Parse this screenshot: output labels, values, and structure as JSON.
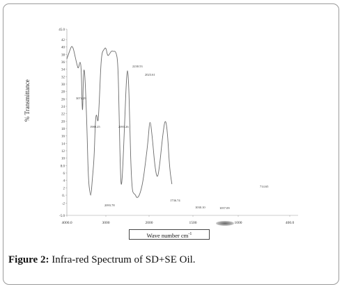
{
  "chart_data": {
    "type": "line",
    "ylabel": "% Transmittance",
    "xlabel": "Wave number cm",
    "xlabel_sup": "-1",
    "x_reversed": true,
    "y_ticks": [
      "45.0",
      "42",
      "40",
      "38",
      "36",
      "34",
      "32",
      "30",
      "28",
      "26",
      "24",
      "22",
      "20",
      "18",
      "16",
      "14",
      "12",
      "10",
      "8.0",
      "6",
      "4",
      "2",
      "0.",
      "-2",
      "-5.0"
    ],
    "x_tick_labels": [
      "4000.0",
      "3000",
      "2000",
      "1500",
      "1000",
      "400.0"
    ],
    "series": [
      {
        "points": [
          [
            4000,
            36.8
          ],
          [
            3900,
            39.8
          ],
          [
            3870,
            40.3
          ],
          [
            3830,
            39.5
          ],
          [
            3790,
            37.5
          ],
          [
            3735,
            35.0
          ],
          [
            3705,
            34.0
          ],
          [
            3660,
            36.5
          ],
          [
            3628,
            34.0
          ],
          [
            3600,
            20.0
          ],
          [
            3580,
            31.0
          ],
          [
            3560,
            34.8
          ],
          [
            3530,
            31.0
          ],
          [
            3490,
            20.0
          ],
          [
            3450,
            4.0
          ],
          [
            3400,
            0.0
          ],
          [
            3380,
            0.0
          ],
          [
            3350,
            4.0
          ],
          [
            3300,
            10.0
          ],
          [
            3270,
            20.0
          ],
          [
            3240,
            22.3
          ],
          [
            3200,
            19.0
          ],
          [
            3170,
            25.0
          ],
          [
            3130,
            35.0
          ],
          [
            3100,
            38.5
          ],
          [
            3050,
            39.3
          ],
          [
            3000,
            40.0
          ],
          [
            2960,
            37.5
          ],
          [
            2920,
            38.0
          ],
          [
            2870,
            39.0
          ],
          [
            2830,
            38.8
          ],
          [
            2770,
            38.9
          ],
          [
            2720,
            36.0
          ],
          [
            2690,
            20.0
          ],
          [
            2660,
            5.0
          ],
          [
            2640,
            2.0
          ],
          [
            2610,
            7.0
          ],
          [
            2570,
            18.0
          ],
          [
            2530,
            30.0
          ],
          [
            2500,
            34.8
          ],
          [
            2470,
            30.0
          ],
          [
            2440,
            16.0
          ],
          [
            2410,
            5.0
          ],
          [
            2385,
            1.2
          ],
          [
            2360,
            0.5
          ],
          [
            2320,
            0.2
          ],
          [
            2280,
            -0.8
          ],
          [
            2220,
            0.0
          ],
          [
            2150,
            3.0
          ],
          [
            2080,
            9.0
          ],
          [
            2020,
            15.0
          ],
          [
            1990,
            21.2
          ],
          [
            1960,
            15.0
          ],
          [
            1935,
            8.0
          ],
          [
            1905,
            4.0
          ],
          [
            1875,
            9.0
          ],
          [
            1845,
            16.0
          ],
          [
            1815,
            21.0
          ],
          [
            1790,
            17.0
          ],
          [
            1765,
            7.0
          ],
          [
            1740,
            3.0
          ]
        ]
      }
    ],
    "annotations": [
      "3074.29",
      "1980.25",
      "2093.26",
      "2230.53",
      "2023.61",
      "2093.78",
      "1736.74",
      "1030.10",
      "1057.09",
      "714.65"
    ]
  },
  "caption": {
    "label": "Figure 2:",
    "text": " Infra-red Spectrum of SD+SE Oil."
  }
}
